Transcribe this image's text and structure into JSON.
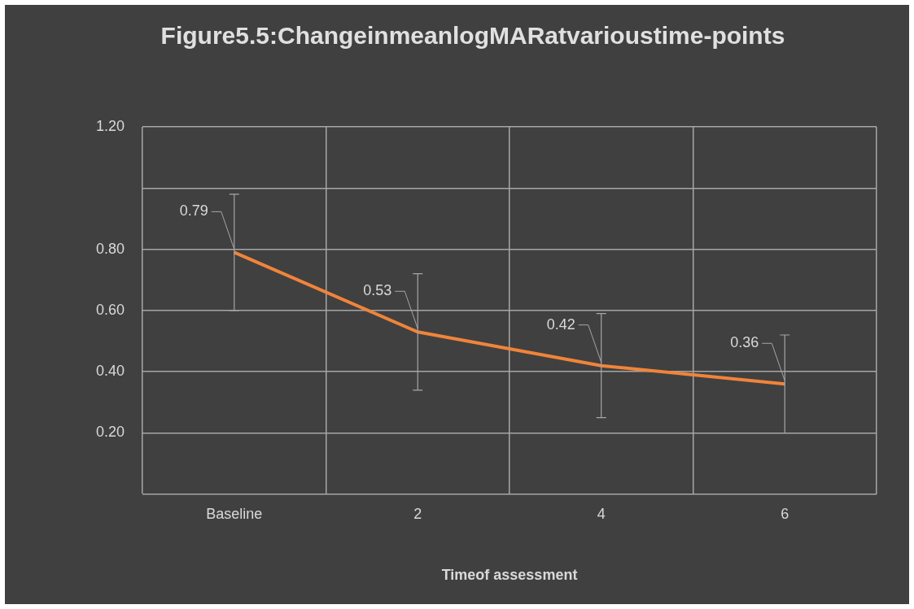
{
  "chart_data": {
    "type": "line",
    "title": "Figure5.5:ChangeinmeanlogMARatvarioustime-points",
    "xlabel": "Timeof assessment",
    "categories": [
      "Baseline",
      "2",
      "4",
      "6"
    ],
    "series": [
      {
        "color": "#f0843a",
        "values": [
          0.79,
          0.53,
          0.42,
          0.36
        ],
        "errors": [
          0.19,
          0.19,
          0.17,
          0.16
        ]
      }
    ],
    "ylim": [
      0,
      1.2
    ],
    "yticks": [
      {
        "value": 0,
        "label": null
      },
      {
        "value": 0.2,
        "label": "0.20"
      },
      {
        "value": 0.4,
        "label": "0.40"
      },
      {
        "value": 0.6,
        "label": "0.60"
      },
      {
        "value": 0.8,
        "label": "0.80"
      },
      {
        "value": 1.0,
        "label": null
      },
      {
        "value": 1.2,
        "label": "1.20"
      }
    ],
    "grid": true,
    "legend": false,
    "marker": "none",
    "line_style": "solid",
    "data_labels": true
  }
}
